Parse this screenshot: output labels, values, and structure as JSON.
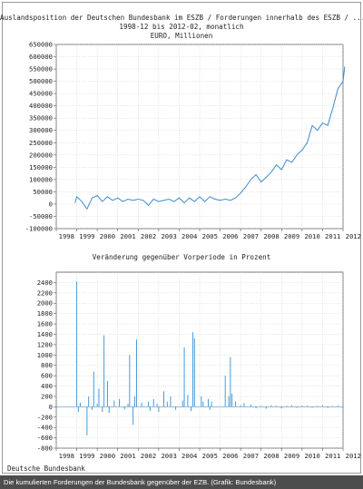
{
  "chart_data": [
    {
      "type": "line",
      "title": "Auslandsposition der Deutschen Bundesbank im ESZB / Forderungen innerhalb des ESZB / ...",
      "subtitle": "1998-12 bis 2012-02, monatlich",
      "units": "EURO, Millionen",
      "ylim": [
        -100000,
        650000
      ],
      "yticks": [
        -100000,
        -50000,
        0,
        50000,
        100000,
        150000,
        200000,
        250000,
        300000,
        350000,
        400000,
        450000,
        500000,
        550000,
        600000,
        650000
      ],
      "xticks": [
        "1998",
        "1999",
        "2000",
        "2001",
        "2002",
        "2003",
        "2004",
        "2005",
        "2006",
        "2007",
        "2008",
        "2009",
        "2010",
        "2011",
        "2012"
      ],
      "grid": true,
      "color": "#3c8ad0",
      "series": [
        {
          "x": [
            1998.917,
            1999.0,
            1999.25,
            1999.5,
            1999.75,
            2000.0,
            2000.25,
            2000.5,
            2000.75,
            2001.0,
            2001.25,
            2001.5,
            2001.75,
            2002.0,
            2002.25,
            2002.5,
            2002.75,
            2003.0,
            2003.25,
            2003.5,
            2003.75,
            2004.0,
            2004.25,
            2004.5,
            2004.75,
            2005.0,
            2005.25,
            2005.5,
            2005.75,
            2006.0,
            2006.25,
            2006.5,
            2006.75,
            2007.0,
            2007.25,
            2007.5,
            2007.75,
            2008.0,
            2008.25,
            2008.5,
            2008.75,
            2009.0,
            2009.25,
            2009.5,
            2009.75,
            2010.0,
            2010.25,
            2010.5,
            2010.75,
            2011.0,
            2011.25,
            2011.5,
            2011.75,
            2012.0,
            2012.083
          ],
          "y": [
            5000,
            30000,
            10000,
            -20000,
            25000,
            35000,
            10000,
            30000,
            15000,
            25000,
            10000,
            20000,
            15000,
            20000,
            15000,
            -5000,
            20000,
            10000,
            15000,
            20000,
            10000,
            25000,
            5000,
            25000,
            10000,
            30000,
            10000,
            30000,
            20000,
            15000,
            20000,
            15000,
            25000,
            45000,
            70000,
            100000,
            120000,
            90000,
            110000,
            130000,
            160000,
            140000,
            180000,
            170000,
            200000,
            220000,
            250000,
            320000,
            300000,
            330000,
            320000,
            390000,
            470000,
            500000,
            560000
          ]
        }
      ]
    },
    {
      "type": "bar",
      "title": "Veränderung gegenüber Vorperiode in Prozent",
      "ylim": [
        -800,
        2600
      ],
      "yticks": [
        -800,
        -600,
        -400,
        -200,
        0,
        200,
        400,
        600,
        800,
        1000,
        1200,
        1400,
        1600,
        1800,
        2000,
        2200,
        2400
      ],
      "xticks": [
        "1998",
        "1999",
        "2000",
        "2001",
        "2002",
        "2003",
        "2004",
        "2005",
        "2006",
        "2007",
        "2008",
        "2009",
        "2010",
        "2011",
        "2012"
      ],
      "grid": true,
      "color": "#4a9ad8",
      "x": [
        1999.0,
        1999.08,
        1999.17,
        1999.5,
        1999.58,
        1999.75,
        1999.83,
        2000.0,
        2000.08,
        2000.25,
        2000.33,
        2000.5,
        2000.58,
        2000.83,
        2001.08,
        2001.33,
        2001.5,
        2001.58,
        2001.75,
        2001.83,
        2001.92,
        2002.17,
        2002.5,
        2002.58,
        2002.75,
        2002.92,
        2003.0,
        2003.25,
        2003.42,
        2003.58,
        2003.83,
        2004.17,
        2004.25,
        2004.42,
        2004.58,
        2004.67,
        2004.75,
        2005.08,
        2005.17,
        2005.42,
        2005.5,
        2005.58,
        2006.25,
        2006.42,
        2006.5,
        2006.58,
        2006.75,
        2007.0,
        2007.17,
        2007.5,
        2007.75,
        2008.0,
        2008.25,
        2008.5,
        2008.75,
        2009.0,
        2009.25,
        2009.5,
        2009.75,
        2010.0,
        2010.25,
        2010.5,
        2010.75,
        2011.0,
        2011.25,
        2011.5,
        2011.75
      ],
      "values": [
        2420,
        -100,
        80,
        -550,
        200,
        -60,
        680,
        60,
        350,
        -100,
        1380,
        500,
        -120,
        120,
        150,
        -50,
        60,
        1000,
        -350,
        200,
        1300,
        80,
        100,
        -80,
        150,
        60,
        -100,
        300,
        100,
        200,
        -60,
        120,
        1150,
        230,
        -80,
        1440,
        1320,
        200,
        100,
        150,
        -60,
        100,
        600,
        200,
        960,
        250,
        100,
        30,
        70,
        40,
        -30,
        20,
        -40,
        30,
        20,
        -30,
        20,
        30,
        -20,
        25,
        20,
        -15,
        20,
        30,
        -20,
        15,
        20
      ]
    }
  ],
  "source": "Deutsche Bundesbank",
  "caption": "Die kumulierten Forderungen der Bundesbank gegenüber der EZB. (Grafik: Bundesbank)"
}
